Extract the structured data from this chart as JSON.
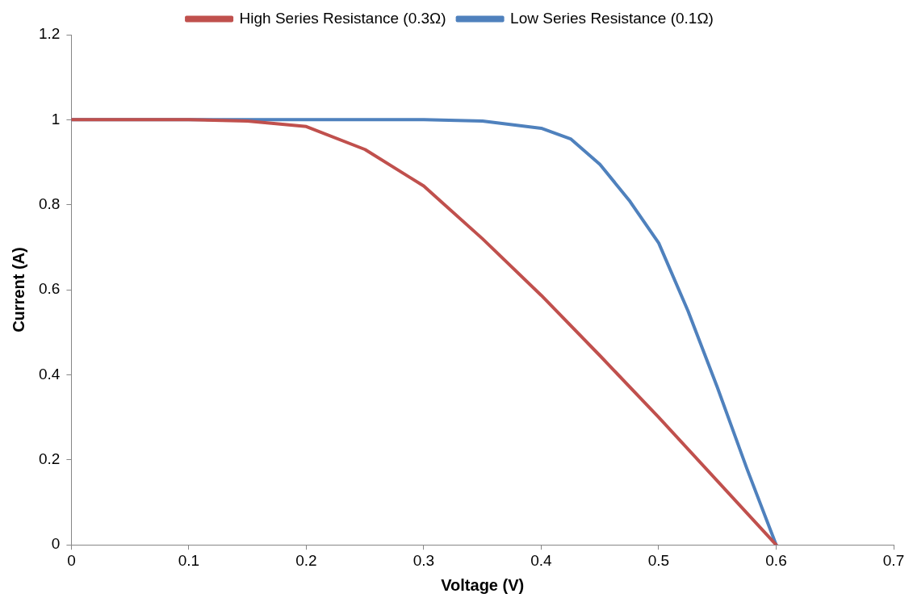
{
  "chart_data": {
    "type": "line",
    "xlabel": "Voltage (V)",
    "ylabel": "Current (A)",
    "xlim": [
      0,
      0.7
    ],
    "xticks": [
      0,
      0.1,
      0.2,
      0.3,
      0.4,
      0.5,
      0.6,
      0.7
    ],
    "ylim": [
      0,
      1.2
    ],
    "yticks": [
      0,
      0.2,
      0.4,
      0.6,
      0.8,
      1,
      1.2
    ],
    "grid": false,
    "legend": "top",
    "marker": "none",
    "line_style": "solid",
    "series": [
      {
        "name": "High Series Resistance (0.3Ω)",
        "color": "#c0504d",
        "x": [
          0,
          0.1,
          0.15,
          0.2,
          0.25,
          0.3,
          0.35,
          0.4,
          0.45,
          0.5,
          0.55,
          0.6
        ],
        "values": [
          1,
          1,
          0.997,
          0.984,
          0.93,
          0.844,
          0.72,
          0.587,
          0.445,
          0.3,
          0.15,
          0
        ]
      },
      {
        "name": "Low Series Resistance (0.1Ω)",
        "color": "#4f81bd",
        "x": [
          0,
          0.1,
          0.2,
          0.3,
          0.35,
          0.4,
          0.425,
          0.45,
          0.475,
          0.5,
          0.525,
          0.55,
          0.575,
          0.6
        ],
        "values": [
          1,
          1,
          1,
          1,
          0.997,
          0.98,
          0.955,
          0.895,
          0.81,
          0.71,
          0.55,
          0.37,
          0.18,
          0
        ]
      }
    ]
  }
}
